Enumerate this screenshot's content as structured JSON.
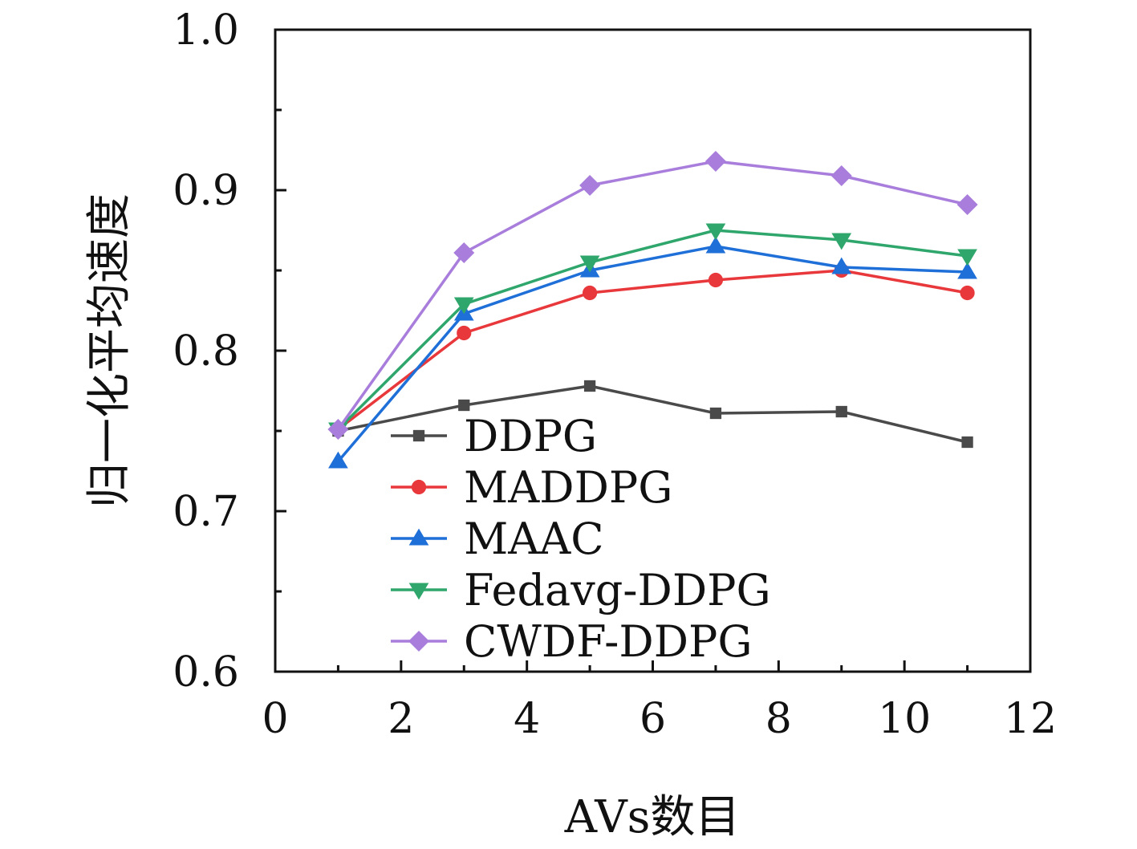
{
  "chart_data": {
    "type": "line",
    "xlabel": "AVs数目",
    "ylabel": "归一化平均速度",
    "xlim": [
      0,
      12
    ],
    "ylim": [
      0.6,
      1.0
    ],
    "x_ticks": [
      "0",
      "2",
      "4",
      "6",
      "8",
      "10",
      "12"
    ],
    "y_ticks": [
      "0.6",
      "0.7",
      "0.8",
      "0.9",
      "1.0"
    ],
    "grid": false,
    "legend_position": "bottom-center",
    "x": [
      1,
      3,
      5,
      7,
      9,
      11
    ],
    "series": [
      {
        "name": "DDPG",
        "marker": "square",
        "color": "#4a4a4a",
        "values": [
          0.75,
          0.766,
          0.778,
          0.761,
          0.762,
          0.743
        ]
      },
      {
        "name": "MADDPG",
        "marker": "circle",
        "color": "#e8383b",
        "values": [
          0.751,
          0.811,
          0.836,
          0.844,
          0.85,
          0.836
        ]
      },
      {
        "name": "MAAC",
        "marker": "triangle-up",
        "color": "#1f6fd8",
        "values": [
          0.731,
          0.823,
          0.85,
          0.865,
          0.852,
          0.849
        ]
      },
      {
        "name": "Fedavg-DDPG",
        "marker": "triangle-down",
        "color": "#2fa66b",
        "values": [
          0.751,
          0.829,
          0.855,
          0.875,
          0.869,
          0.859
        ]
      },
      {
        "name": "CWDF-DDPG",
        "marker": "diamond",
        "color": "#a87ddb",
        "values": [
          0.751,
          0.861,
          0.903,
          0.918,
          0.909,
          0.891
        ]
      }
    ]
  }
}
